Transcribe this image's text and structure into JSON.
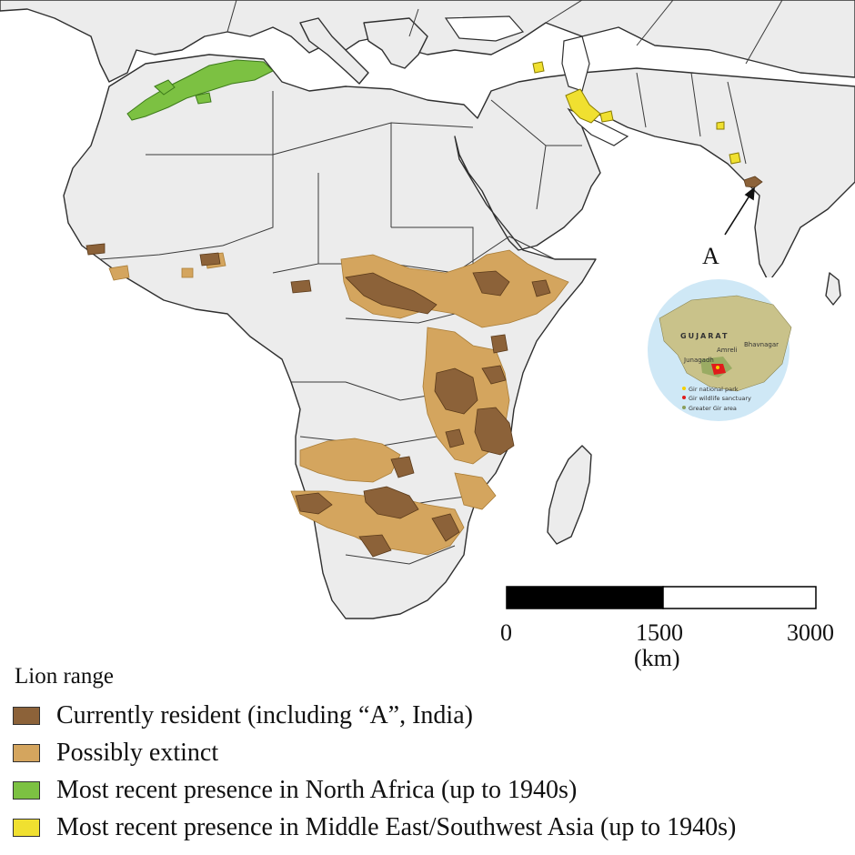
{
  "map_label": "A",
  "scale_bar": {
    "ticks": [
      "0",
      "1500",
      "3000"
    ],
    "unit": "(km)"
  },
  "inset": {
    "region_label": "GUJARAT",
    "places": [
      "Amreli",
      "Bhavnagar",
      "Junagadh"
    ],
    "legend": [
      {
        "label": "Gir national park",
        "color": "#f5d000"
      },
      {
        "label": "Gir wildlife sanctuary",
        "color": "#e01b1b"
      },
      {
        "label": "Greater Gir area",
        "color": "#8a9e5a"
      }
    ]
  },
  "legend": {
    "title": "Lion range",
    "items": [
      {
        "label": "Currently resident (including “A”, India)",
        "color": "#8c6239"
      },
      {
        "label": "Possibly extinct",
        "color": "#d4a55e"
      },
      {
        "label": "Most recent presence in North Africa (up to 1940s)",
        "color": "#7cc142"
      },
      {
        "label": "Most recent presence in Middle East/Southwest Asia (up to 1940s)",
        "color": "#f0e030"
      }
    ]
  },
  "colors": {
    "land": "#eeeeee",
    "water": "#ffffff",
    "border": "#333333"
  }
}
